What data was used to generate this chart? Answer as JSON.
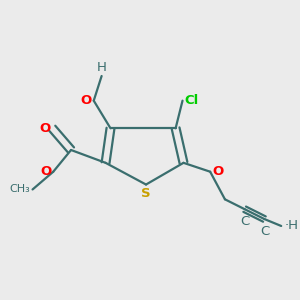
{
  "bg_color": "#ebebeb",
  "atom_colors": {
    "S": "#c8a000",
    "O": "#ff0000",
    "Cl": "#00cc00",
    "C": "#3a6e6e",
    "H": "#3a6e6e"
  },
  "bond_color": "#3a6e6e",
  "figsize": [
    3.0,
    3.0
  ],
  "dpi": 100
}
